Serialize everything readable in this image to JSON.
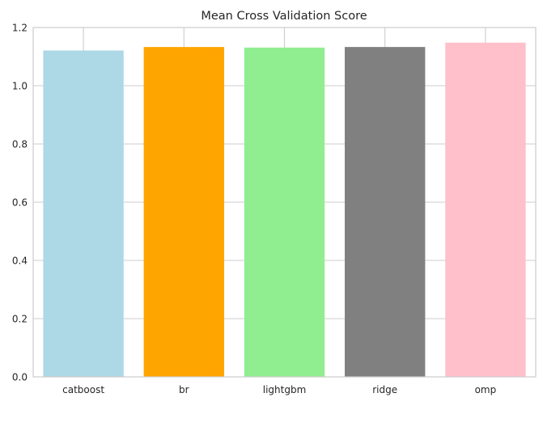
{
  "chart_data": {
    "type": "bar",
    "title": "Mean Cross Validation Score",
    "xlabel": "",
    "ylabel": "",
    "categories": [
      "catboost",
      "br",
      "lightgbm",
      "ridge",
      "omp"
    ],
    "values": [
      1.121,
      1.133,
      1.131,
      1.133,
      1.148
    ],
    "colors": [
      "#add8e6",
      "#ffa500",
      "#90ee90",
      "#808080",
      "#ffc0cb"
    ],
    "ylim": [
      0,
      1.2
    ],
    "yticks": [
      0.0,
      0.2,
      0.4,
      0.6,
      0.8,
      1.0,
      1.2
    ],
    "ytick_labels": [
      "0.0",
      "0.2",
      "0.4",
      "0.6",
      "0.8",
      "1.0",
      "1.2"
    ],
    "grid": true,
    "grid_color": "#cccccc",
    "spine_color": "#cccccc",
    "text_color": "#262626",
    "legend": "none"
  }
}
